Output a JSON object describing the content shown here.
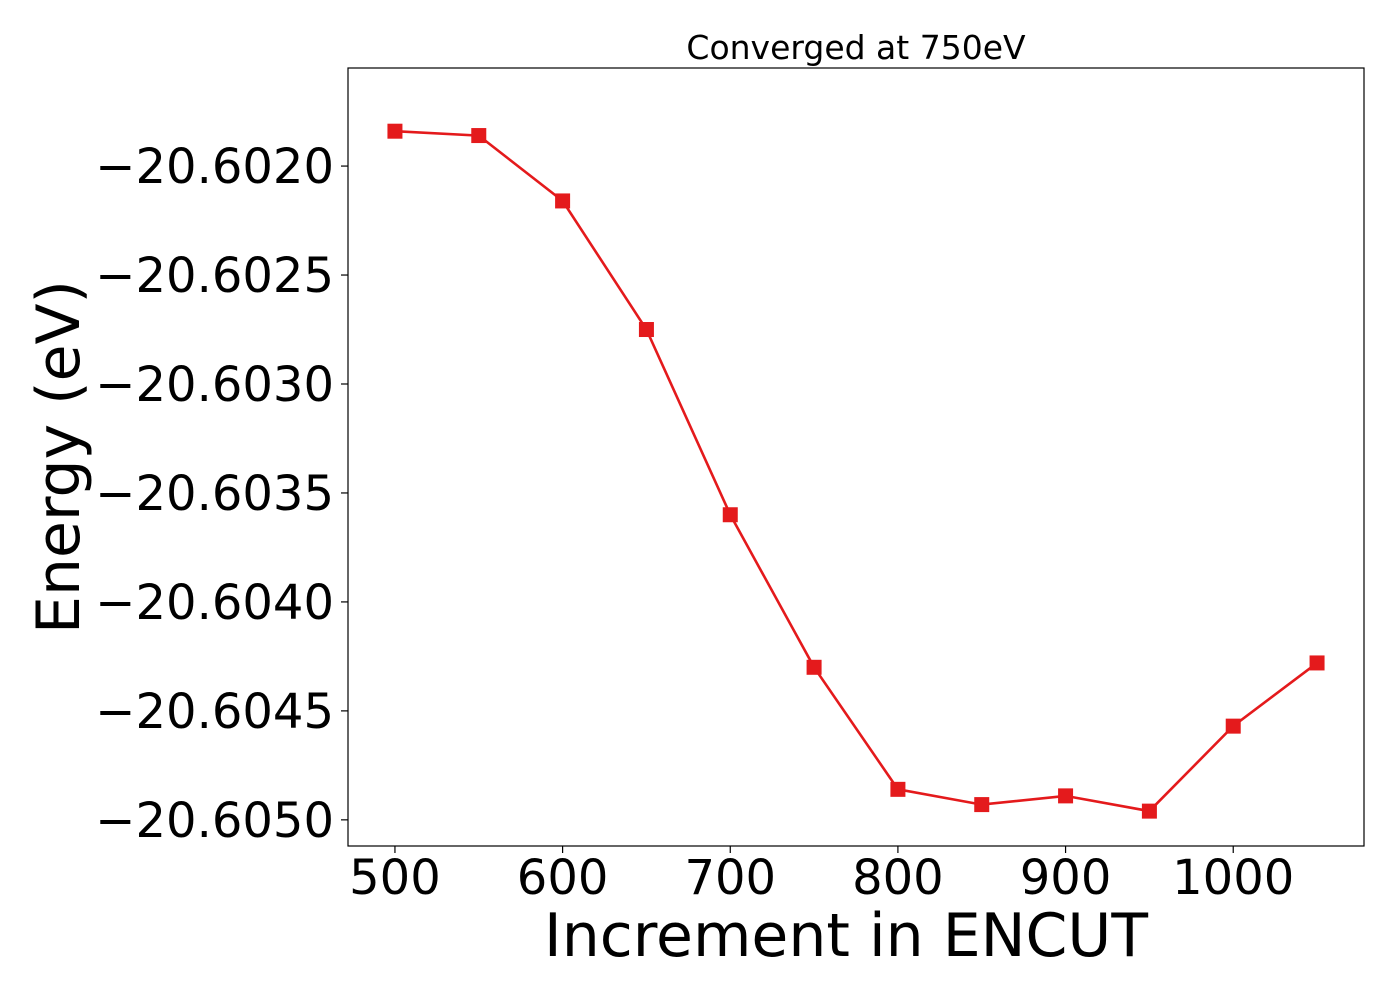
{
  "chart_data": {
    "type": "line",
    "title": "Converged at 750eV",
    "xlabel": "Increment in ENCUT",
    "ylabel": "Energy (eV)",
    "xlim": [
      472,
      1078
    ],
    "ylim": [
      -20.60512,
      -20.60155
    ],
    "xticks": [
      500,
      600,
      700,
      800,
      900,
      1000
    ],
    "yticks": [
      -20.602,
      -20.6025,
      -20.603,
      -20.6035,
      -20.604,
      -20.6045,
      -20.605
    ],
    "ytick_labels": [
      "−20.6020",
      "−20.6025",
      "−20.6030",
      "−20.6035",
      "−20.6040",
      "−20.6045",
      "−20.6050"
    ],
    "grid": false,
    "legend": "none",
    "series": [
      {
        "color": "#e41a1c",
        "marker": "square",
        "x": [
          500,
          550,
          600,
          650,
          700,
          750,
          800,
          850,
          900,
          950,
          1000,
          1050
        ],
        "y": [
          -20.60184,
          -20.60186,
          -20.60216,
          -20.60275,
          -20.6036,
          -20.6043,
          -20.60486,
          -20.60493,
          -20.60489,
          -20.60496,
          -20.60457,
          -20.60428
        ]
      }
    ]
  }
}
